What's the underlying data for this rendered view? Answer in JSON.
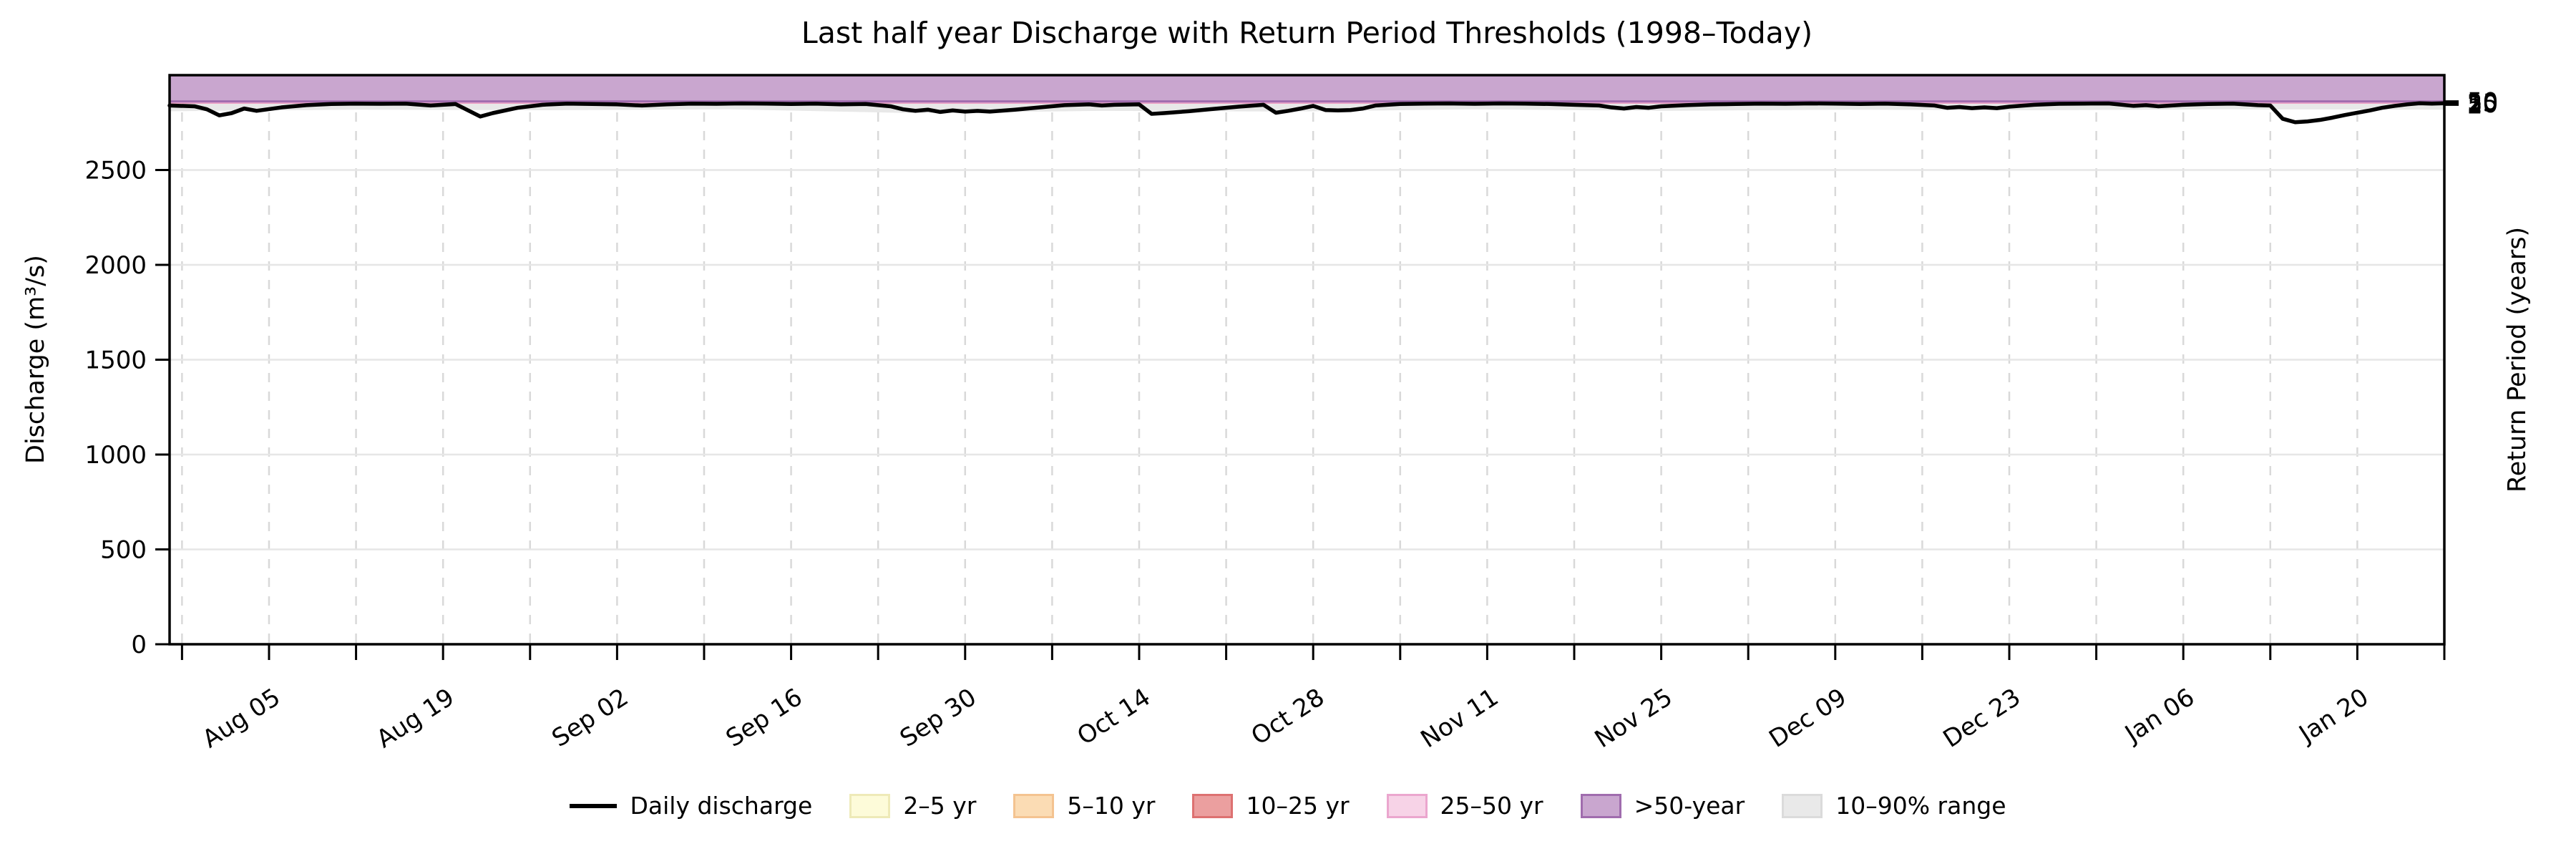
{
  "page": {
    "background": "#ffffff"
  },
  "chart_data": {
    "type": "line",
    "title": "Last half year Discharge with Return Period Thresholds (1998–Today)",
    "ylabel": "Discharge (m³/s)",
    "y2label": "Return Period (years)",
    "ylim": [
      0,
      3000
    ],
    "yticks": [
      0,
      500,
      1000,
      1500,
      2000,
      2500
    ],
    "grid": {
      "h_color": "#e6e6e6",
      "v_color": "#d9d9d9",
      "v_dash": "13 13"
    },
    "x_axis": {
      "total_days": 183,
      "minor_tick_start_day": 1,
      "minor_tick_step_days": 7,
      "major_ticks": [
        {
          "day": 8,
          "label": "Aug 05"
        },
        {
          "day": 22,
          "label": "Aug 19"
        },
        {
          "day": 36,
          "label": "Sep 02"
        },
        {
          "day": 50,
          "label": "Sep 16"
        },
        {
          "day": 64,
          "label": "Sep 30"
        },
        {
          "day": 78,
          "label": "Oct 14"
        },
        {
          "day": 92,
          "label": "Oct 28"
        },
        {
          "day": 106,
          "label": "Nov 11"
        },
        {
          "day": 120,
          "label": "Nov 25"
        },
        {
          "day": 134,
          "label": "Dec 09"
        },
        {
          "day": 148,
          "label": "Dec 23"
        },
        {
          "day": 162,
          "label": "Jan 06"
        },
        {
          "day": 176,
          "label": "Jan 20"
        }
      ]
    },
    "return_period_axis": {
      "tick_labels": [
        "2",
        "5",
        "10",
        "25",
        "50"
      ]
    },
    "thresholds": [
      {
        "return_period": "2",
        "value": 2844
      },
      {
        "return_period": "5",
        "value": 2847
      },
      {
        "return_period": "10",
        "value": 2850
      },
      {
        "return_period": "25",
        "value": 2855
      },
      {
        "return_period": "50",
        "value": 2862
      }
    ],
    "bands": [
      {
        "label": "2–5 yr",
        "from": 2844,
        "to": 2847,
        "fill": "#fdfbd9",
        "edge": "#eeeab8"
      },
      {
        "label": "5–10 yr",
        "from": 2847,
        "to": 2850,
        "fill": "#fbdcb4",
        "edge": "#f4c390"
      },
      {
        "label": "10–25 yr",
        "from": 2850,
        "to": 2855,
        "fill": "#eb9f9f",
        "edge": "#dd7171"
      },
      {
        "label": "25–50 yr",
        "from": 2855,
        "to": 2862,
        "fill": "#f7d3e7",
        "edge": "#eba6ce"
      },
      {
        "label": ">50-year",
        "from": 2862,
        "to": 3000,
        "fill": "#c9a6cf",
        "edge": "#a06cae"
      }
    ],
    "range_band": {
      "label": "10–90% range",
      "fill": "#e8e8e8",
      "edge": "#dbdbdb",
      "upper": 2849,
      "days": [
        0,
        15,
        30,
        45,
        60,
        75,
        90,
        105,
        120,
        135,
        150,
        165,
        183
      ],
      "lower": [
        2810,
        2818,
        2815,
        2820,
        2800,
        2812,
        2808,
        2820,
        2812,
        2818,
        2815,
        2820,
        2818
      ]
    },
    "series": [
      {
        "name": "Daily discharge",
        "color": "#000000",
        "width": 5.5,
        "days": [
          0,
          2,
          3,
          4,
          5,
          6,
          7,
          9,
          11,
          13,
          15,
          17,
          19,
          21,
          23,
          25,
          26,
          28,
          30,
          32,
          34,
          36,
          38,
          40,
          42,
          44,
          46,
          48,
          50,
          52,
          54,
          56,
          58,
          59,
          60,
          61,
          62,
          63,
          64,
          65,
          66,
          68,
          70,
          72,
          74,
          75,
          76,
          78,
          79,
          80,
          82,
          84,
          86,
          88,
          89,
          90,
          91,
          92,
          93,
          94,
          95,
          96,
          97,
          99,
          101,
          103,
          105,
          107,
          109,
          111,
          113,
          115,
          116,
          117,
          118,
          119,
          120,
          122,
          124,
          126,
          128,
          130,
          132,
          134,
          136,
          138,
          140,
          142,
          143,
          144,
          145,
          146,
          147,
          148,
          150,
          152,
          154,
          156,
          158,
          159,
          160,
          162,
          164,
          166,
          168,
          169,
          170,
          171,
          172,
          173,
          174,
          175,
          176,
          177,
          178,
          179,
          180,
          181,
          182,
          183
        ],
        "values": [
          2840,
          2836,
          2820,
          2788,
          2800,
          2824,
          2812,
          2830,
          2842,
          2848,
          2850,
          2849,
          2850,
          2840,
          2848,
          2782,
          2800,
          2828,
          2844,
          2850,
          2848,
          2846,
          2840,
          2846,
          2850,
          2849,
          2851,
          2850,
          2848,
          2850,
          2846,
          2848,
          2836,
          2820,
          2812,
          2818,
          2806,
          2814,
          2808,
          2812,
          2808,
          2818,
          2830,
          2842,
          2846,
          2840,
          2844,
          2846,
          2796,
          2800,
          2810,
          2822,
          2834,
          2844,
          2802,
          2812,
          2824,
          2838,
          2816,
          2814,
          2816,
          2824,
          2840,
          2848,
          2850,
          2851,
          2849,
          2851,
          2850,
          2848,
          2844,
          2840,
          2830,
          2824,
          2832,
          2828,
          2836,
          2842,
          2846,
          2848,
          2850,
          2849,
          2851,
          2850,
          2848,
          2850,
          2846,
          2840,
          2828,
          2832,
          2826,
          2830,
          2826,
          2834,
          2844,
          2849,
          2850,
          2851,
          2838,
          2842,
          2836,
          2844,
          2848,
          2850,
          2842,
          2840,
          2770,
          2752,
          2756,
          2764,
          2776,
          2790,
          2802,
          2814,
          2828,
          2838,
          2846,
          2852,
          2850,
          2852
        ]
      }
    ],
    "legend": {
      "position": "bottom-center",
      "items": [
        {
          "label": "Daily discharge",
          "type": "line",
          "color": "#000000"
        },
        {
          "label": "2–5 yr",
          "type": "patch",
          "fill": "#fdfbd9",
          "edge": "#eeeab8"
        },
        {
          "label": "5–10 yr",
          "type": "patch",
          "fill": "#fbdcb4",
          "edge": "#f4c390"
        },
        {
          "label": "10–25 yr",
          "type": "patch",
          "fill": "#eb9f9f",
          "edge": "#dd7171"
        },
        {
          "label": "25–50 yr",
          "type": "patch",
          "fill": "#f7d3e7",
          "edge": "#eba6ce"
        },
        {
          "label": ">50-year",
          "type": "patch",
          "fill": "#c9a6cf",
          "edge": "#a06cae"
        },
        {
          "label": "10–90% range",
          "type": "patch",
          "fill": "#e9e9e9",
          "edge": "#dbdbdb"
        }
      ]
    }
  }
}
